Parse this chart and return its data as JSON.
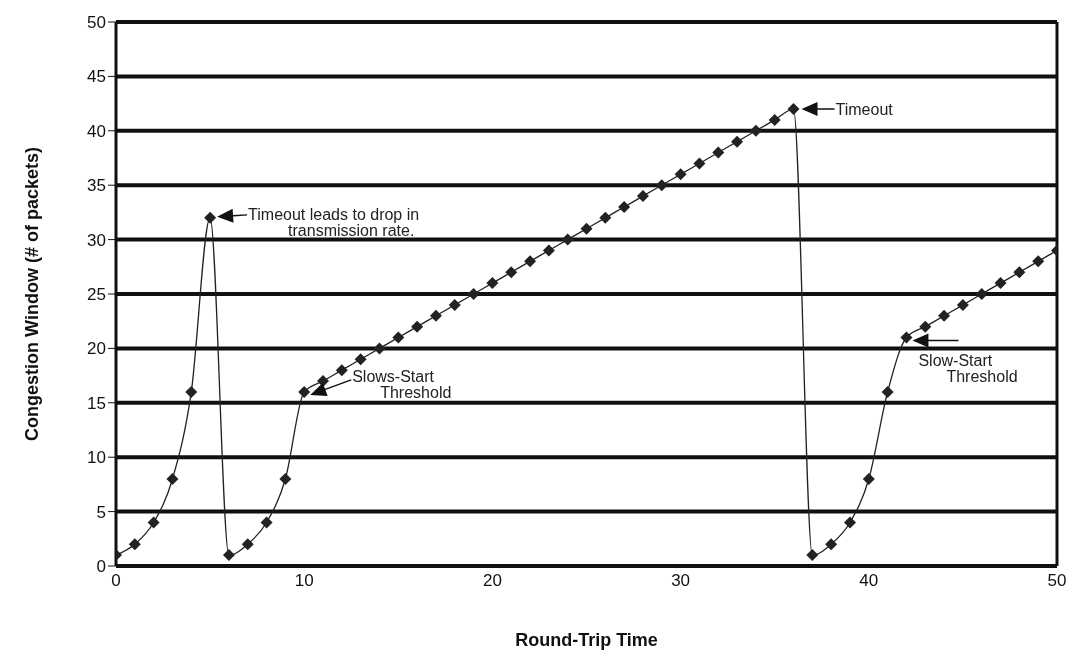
{
  "chart_data": {
    "type": "line",
    "xlabel": "Round-Trip Time",
    "ylabel": "Congestion Window (# of packets)",
    "x": [
      0,
      1,
      2,
      3,
      4,
      5,
      6,
      7,
      8,
      9,
      10,
      11,
      12,
      13,
      14,
      15,
      16,
      17,
      18,
      19,
      20,
      21,
      22,
      23,
      24,
      25,
      26,
      27,
      28,
      29,
      30,
      31,
      32,
      33,
      34,
      35,
      36,
      37,
      38,
      39,
      40,
      41,
      42,
      43,
      44,
      45,
      46,
      47,
      48,
      49,
      50
    ],
    "series": [
      {
        "color": "#222222",
        "values": [
          1,
          2,
          4,
          8,
          16,
          32,
          1,
          2,
          4,
          8,
          16,
          17,
          18,
          19,
          20,
          21,
          22,
          23,
          24,
          25,
          26,
          27,
          28,
          29,
          30,
          31,
          32,
          33,
          34,
          35,
          36,
          37,
          38,
          39,
          40,
          41,
          42,
          1,
          2,
          4,
          8,
          16,
          21,
          22,
          23,
          24,
          25,
          26,
          27,
          28,
          29
        ]
      }
    ],
    "xlim": [
      0,
      50
    ],
    "xticks": [
      0,
      10,
      20,
      30,
      40,
      50
    ],
    "ylim": [
      0,
      50
    ],
    "yticks": [
      0,
      5,
      10,
      15,
      20,
      25,
      30,
      35,
      40,
      45,
      50
    ],
    "grid": "y",
    "marker": "diamond",
    "line_style": "solid",
    "legend": false,
    "annotations": [
      {
        "text": "Timeout leads to drop in transmission rate.",
        "x": 5,
        "y": 32
      },
      {
        "text": "Slows-Start Threshold",
        "x": 10,
        "y": 16
      },
      {
        "text": "Timeout",
        "x": 36,
        "y": 42
      },
      {
        "text": "Slow-Start Threshold",
        "x": 42,
        "y": 21
      }
    ]
  }
}
